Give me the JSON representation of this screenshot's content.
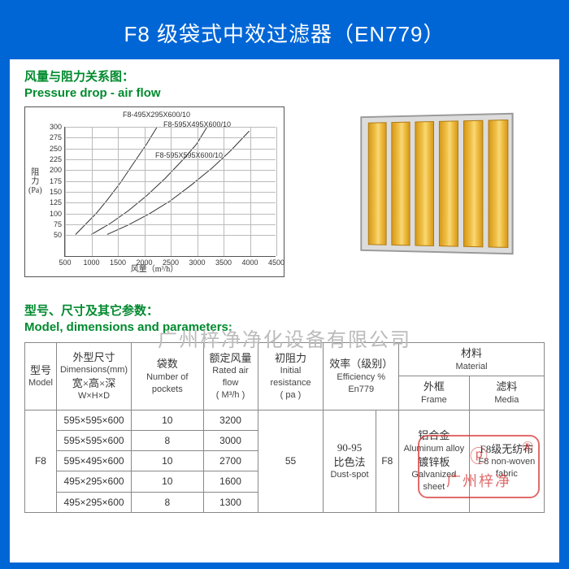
{
  "title": "F8 级袋式中效过滤器（EN779）",
  "section1": {
    "cn": "风量与阻力关系图：",
    "en": "Pressure drop - air flow"
  },
  "section2": {
    "cn": "型号、尺寸及其它参数：",
    "en": "Model, dimensions and parameters:"
  },
  "watermark": "广州梓净净化设备有限公司",
  "chart": {
    "type": "line",
    "ylabel_cn": "阻\n力",
    "ylabel_unit": "(Pa)",
    "xlabel": "风量（m³/h）",
    "ylim": [
      0,
      300
    ],
    "xlim": [
      500,
      4500
    ],
    "yticks": [
      50,
      75,
      100,
      125,
      150,
      175,
      200,
      225,
      250,
      275,
      300
    ],
    "xticks": [
      500,
      1000,
      1500,
      2000,
      2500,
      3000,
      3500,
      4000,
      4500
    ],
    "grid_color": "#bbbbbb",
    "background_color": "#ffffff",
    "line_color": "#333333",
    "line_width": 1,
    "series_labels": [
      "F8-495X295X600/10",
      "F8-595X495X600/10",
      "F8-595X595X600/10"
    ],
    "series": [
      [
        [
          700,
          50
        ],
        [
          900,
          75
        ],
        [
          1100,
          100
        ],
        [
          1300,
          130
        ],
        [
          1550,
          170
        ],
        [
          1800,
          215
        ],
        [
          2050,
          260
        ],
        [
          2250,
          300
        ]
      ],
      [
        [
          1000,
          50
        ],
        [
          1350,
          75
        ],
        [
          1700,
          105
        ],
        [
          2050,
          140
        ],
        [
          2400,
          180
        ],
        [
          2750,
          225
        ],
        [
          3000,
          260
        ],
        [
          3200,
          300
        ]
      ],
      [
        [
          1300,
          50
        ],
        [
          1700,
          72
        ],
        [
          2100,
          98
        ],
        [
          2500,
          128
        ],
        [
          2900,
          165
        ],
        [
          3300,
          205
        ],
        [
          3650,
          245
        ],
        [
          4000,
          290
        ]
      ]
    ]
  },
  "product": {
    "pocket_color": "#f2c24a",
    "frame_color": "#dcdcdc",
    "pocket_count": 6
  },
  "table": {
    "headers": {
      "model": {
        "cn": "型号",
        "en": "Model"
      },
      "dims": {
        "cn": "外型尺寸",
        "en": "Dimensions(mm)",
        "sub_cn": "宽×高×深",
        "sub_en": "W×H×D"
      },
      "pockets": {
        "cn": "袋数",
        "en": "Number of pockets"
      },
      "airflow": {
        "cn": "额定风量",
        "en": "Rated air flow",
        "unit": "( M³/h )"
      },
      "resistance": {
        "cn": "初阻力",
        "en": "Initial resistance",
        "unit": "( pa )"
      },
      "efficiency": {
        "cn": "效率（级别）",
        "en": "Efficiency % En779"
      },
      "material": {
        "cn": "材料",
        "en": "Material"
      },
      "frame": {
        "cn": "外框",
        "en": "Frame"
      },
      "media": {
        "cn": "滤料",
        "en": "Media"
      }
    },
    "model_value": "F8",
    "rows": [
      {
        "dims": "595×595×600",
        "pockets": 10,
        "airflow": 3200
      },
      {
        "dims": "595×595×600",
        "pockets": 8,
        "airflow": 3000
      },
      {
        "dims": "595×495×600",
        "pockets": 10,
        "airflow": 2700
      },
      {
        "dims": "495×295×600",
        "pockets": 10,
        "airflow": 1600
      },
      {
        "dims": "495×295×600",
        "pockets": 8,
        "airflow": 1300
      }
    ],
    "initial_resistance": 55,
    "efficiency_cn1": "90-95",
    "efficiency_cn2": "比色法",
    "efficiency_en": "Dust-spot",
    "efficiency_class": "F8",
    "frame_cn1": "铝合金",
    "frame_en1": "Aluminum alloy",
    "frame_cn2": "镀锌板",
    "frame_en2": "Galvanized sheet",
    "media_cn": "F8级无纺布",
    "media_en": "F8 non-woven fabric"
  },
  "stamp": {
    "reg": "®",
    "text": "广州梓净"
  }
}
